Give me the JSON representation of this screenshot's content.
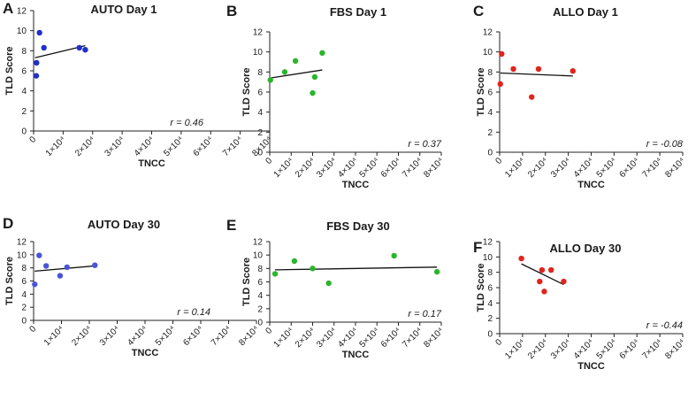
{
  "chart_data": [
    {
      "panel": "A",
      "type": "scatter",
      "title": "AUTO Day 1",
      "xlabel": "TNCC",
      "ylabel": "TLD Score",
      "xlim": [
        0,
        80000
      ],
      "ylim": [
        0,
        12
      ],
      "x_ticks": [
        "0",
        "1×10⁴",
        "2×10⁴",
        "3×10⁴",
        "4×10⁴",
        "5×10⁴",
        "6×10⁴",
        "7×10⁴",
        "8×10⁴"
      ],
      "y_ticks": [
        "0",
        "2",
        "4",
        "6",
        "8",
        "10",
        "12"
      ],
      "color": "#1f2ecc",
      "points": [
        {
          "x": 900,
          "y": 5.5
        },
        {
          "x": 1000,
          "y": 6.8
        },
        {
          "x": 2000,
          "y": 9.8
        },
        {
          "x": 3500,
          "y": 8.3
        },
        {
          "x": 15500,
          "y": 8.3
        },
        {
          "x": 17500,
          "y": 8.1
        }
      ],
      "regression": {
        "x": [
          500,
          17500
        ],
        "y": [
          7.3,
          8.5
        ]
      },
      "annotation": "r = 0.46"
    },
    {
      "panel": "B",
      "type": "scatter",
      "title": "FBS Day 1",
      "xlabel": "TNCC",
      "ylabel": "TLD Score",
      "xlim": [
        0,
        80000
      ],
      "ylim": [
        0,
        12
      ],
      "x_ticks": [
        "0",
        "1×10⁴",
        "2×10⁴",
        "3×10⁴",
        "4×10⁴",
        "5×10⁴",
        "6×10⁴",
        "7×10⁴",
        "8×10⁴"
      ],
      "y_ticks": [
        "0",
        "2",
        "4",
        "6",
        "8",
        "10",
        "12"
      ],
      "color": "#2bb52b",
      "points": [
        {
          "x": 300,
          "y": 7.2
        },
        {
          "x": 7000,
          "y": 8.0
        },
        {
          "x": 12000,
          "y": 9.1
        },
        {
          "x": 20000,
          "y": 5.9
        },
        {
          "x": 21000,
          "y": 7.5
        },
        {
          "x": 24500,
          "y": 9.9
        }
      ],
      "regression": {
        "x": [
          300,
          24500
        ],
        "y": [
          7.4,
          8.2
        ]
      },
      "annotation": "r = 0.37"
    },
    {
      "panel": "C",
      "type": "scatter",
      "title": "ALLO Day 1",
      "xlabel": "TNCC",
      "ylabel": "TLD Score",
      "xlim": [
        0,
        80000
      ],
      "ylim": [
        0,
        12
      ],
      "x_ticks": [
        "0",
        "1×10⁴",
        "2×10⁴",
        "3×10⁴",
        "4×10⁴",
        "5×10⁴",
        "6×10⁴",
        "7×10⁴",
        "8×10⁴"
      ],
      "y_ticks": [
        "0",
        "2",
        "4",
        "6",
        "8",
        "10",
        "12"
      ],
      "color": "#e0251c",
      "points": [
        {
          "x": 300,
          "y": 6.8
        },
        {
          "x": 900,
          "y": 9.8
        },
        {
          "x": 6000,
          "y": 8.3
        },
        {
          "x": 14000,
          "y": 5.5
        },
        {
          "x": 17000,
          "y": 8.3
        },
        {
          "x": 32000,
          "y": 8.1
        }
      ],
      "regression": {
        "x": [
          300,
          32000
        ],
        "y": [
          7.9,
          7.6
        ]
      },
      "annotation": "r = -0.08"
    },
    {
      "panel": "D",
      "type": "scatter",
      "title": "AUTO Day 30",
      "xlabel": "TNCC",
      "ylabel": "TLD Score",
      "xlim": [
        0,
        80000
      ],
      "ylim": [
        0,
        12
      ],
      "x_ticks": [
        "0",
        "1×10⁴",
        "2×10⁴",
        "3×10⁴",
        "4×10⁴",
        "5×10⁴",
        "6×10⁴",
        "7×10⁴",
        "8×10⁴"
      ],
      "y_ticks": [
        "0",
        "2",
        "4",
        "6",
        "8",
        "10",
        "12"
      ],
      "color": "#4a55d6",
      "points": [
        {
          "x": 400,
          "y": 5.5
        },
        {
          "x": 2000,
          "y": 9.9
        },
        {
          "x": 4500,
          "y": 8.3
        },
        {
          "x": 9500,
          "y": 6.8
        },
        {
          "x": 12000,
          "y": 8.1
        },
        {
          "x": 22000,
          "y": 8.4
        }
      ],
      "regression": {
        "x": [
          400,
          22000
        ],
        "y": [
          7.5,
          8.3
        ]
      },
      "annotation": "r = 0.14"
    },
    {
      "panel": "E",
      "type": "scatter",
      "title": "FBS Day 30",
      "xlabel": "TNCC",
      "ylabel": "TLD Score",
      "xlim": [
        0,
        80000
      ],
      "ylim": [
        0,
        12
      ],
      "x_ticks": [
        "0",
        "1×10⁴",
        "2×10⁴",
        "3×10⁴",
        "4×10⁴",
        "5×10⁴",
        "6×10⁴",
        "7×10⁴",
        "8×10⁴"
      ],
      "y_ticks": [
        "0",
        "2",
        "4",
        "6",
        "8",
        "10",
        "12"
      ],
      "color": "#2bb52b",
      "points": [
        {
          "x": 2500,
          "y": 7.2
        },
        {
          "x": 11500,
          "y": 9.1
        },
        {
          "x": 20000,
          "y": 8.0
        },
        {
          "x": 27500,
          "y": 5.8
        },
        {
          "x": 58000,
          "y": 9.9
        },
        {
          "x": 78000,
          "y": 7.5
        }
      ],
      "regression": {
        "x": [
          2500,
          78000
        ],
        "y": [
          7.8,
          8.2
        ]
      },
      "annotation": "r = 0.17"
    },
    {
      "panel": "F",
      "type": "scatter",
      "title": "ALLO Day 30",
      "xlabel": "TNCC",
      "ylabel": "TLD Score",
      "xlim": [
        0,
        80000
      ],
      "ylim": [
        0,
        12
      ],
      "x_ticks": [
        "0",
        "1×10⁴",
        "2×10⁴",
        "3×10⁴",
        "4×10⁴",
        "5×10⁴",
        "6×10⁴",
        "7×10⁴",
        "8×10⁴"
      ],
      "y_ticks": [
        "0",
        "2",
        "4",
        "6",
        "8",
        "10",
        "12"
      ],
      "color": "#e0251c",
      "points": [
        {
          "x": 9500,
          "y": 9.8
        },
        {
          "x": 17500,
          "y": 6.8
        },
        {
          "x": 18500,
          "y": 8.3
        },
        {
          "x": 19500,
          "y": 5.5
        },
        {
          "x": 22500,
          "y": 8.3
        },
        {
          "x": 28000,
          "y": 6.8
        }
      ],
      "regression": {
        "x": [
          9500,
          28000
        ],
        "y": [
          9.1,
          6.4
        ]
      },
      "annotation": "r = -0.44"
    }
  ]
}
